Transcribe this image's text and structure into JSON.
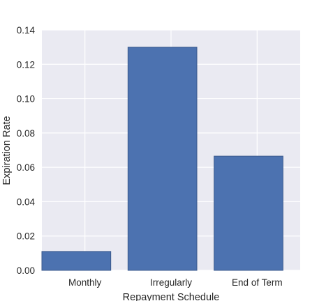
{
  "chart_data": {
    "type": "bar",
    "categories": [
      "Monthly",
      "Irregularly",
      "End of Term"
    ],
    "values": [
      0.011,
      0.13,
      0.0665
    ],
    "xlabel": "Repayment Schedule",
    "ylabel": "Expiration Rate",
    "ylim": [
      0,
      0.14
    ],
    "yticks": [
      "0.00",
      "0.02",
      "0.04",
      "0.06",
      "0.08",
      "0.10",
      "0.12",
      "0.14"
    ],
    "grid": true,
    "colors": {
      "bar": "#4c72b0",
      "bar_edge": "#3b5a8c",
      "plot_background": "#eaeaf2",
      "grid": "#ffffff"
    }
  }
}
